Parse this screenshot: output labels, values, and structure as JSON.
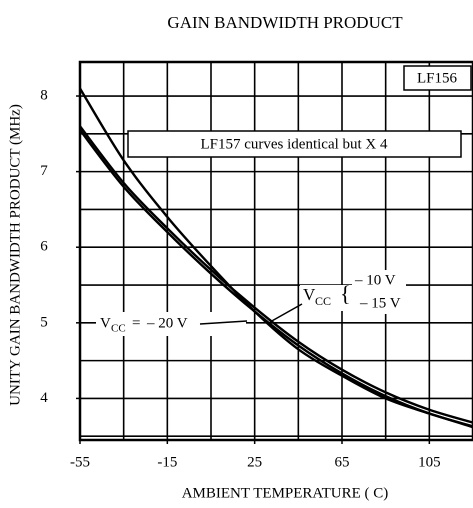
{
  "chart_data": {
    "type": "line",
    "title": "GAIN BANDWIDTH PRODUCT",
    "y_label": "UNITY GAIN BANDWIDTH PRODUCT  (MHz)",
    "x_label": "AMBIENT TEMPERATURE ( C)",
    "x": [
      -55,
      -35,
      -15,
      5,
      25,
      45,
      65,
      85,
      105,
      125
    ],
    "series": [
      {
        "name": "– 20 V",
        "color": "#000000",
        "values": [
          8.1,
          7.15,
          6.4,
          5.75,
          5.15,
          4.65,
          4.3,
          4.0,
          3.8,
          3.62
        ]
      },
      {
        "name": "– 15 V",
        "color": "#000000",
        "values": [
          7.6,
          6.85,
          6.25,
          5.7,
          5.2,
          4.75,
          4.38,
          4.08,
          3.85,
          3.68
        ]
      },
      {
        "name": "– 10 V",
        "color": "#000000",
        "values": [
          7.55,
          6.8,
          6.2,
          5.65,
          5.15,
          4.7,
          4.33,
          4.03,
          3.8,
          3.63
        ]
      }
    ],
    "xlim": [
      -55,
      125
    ],
    "ylim": [
      3.45,
      8.45
    ],
    "xticks": [
      -55,
      -15,
      25,
      65,
      105
    ],
    "yticks": [
      4,
      5,
      6,
      7,
      8
    ],
    "xgrid": [
      -55,
      -35,
      -15,
      5,
      25,
      45,
      65,
      85,
      105,
      125
    ],
    "ygrid": [
      3.5,
      4,
      4.5,
      5,
      5.5,
      6,
      6.5,
      7,
      7.5,
      8
    ],
    "grid": true,
    "annotations": {
      "part": "LF156",
      "note": "LF157 curves identical but  X 4",
      "symbol": "V",
      "symbol_sub": "CC",
      "equals": "=",
      "brace": "{"
    }
  }
}
